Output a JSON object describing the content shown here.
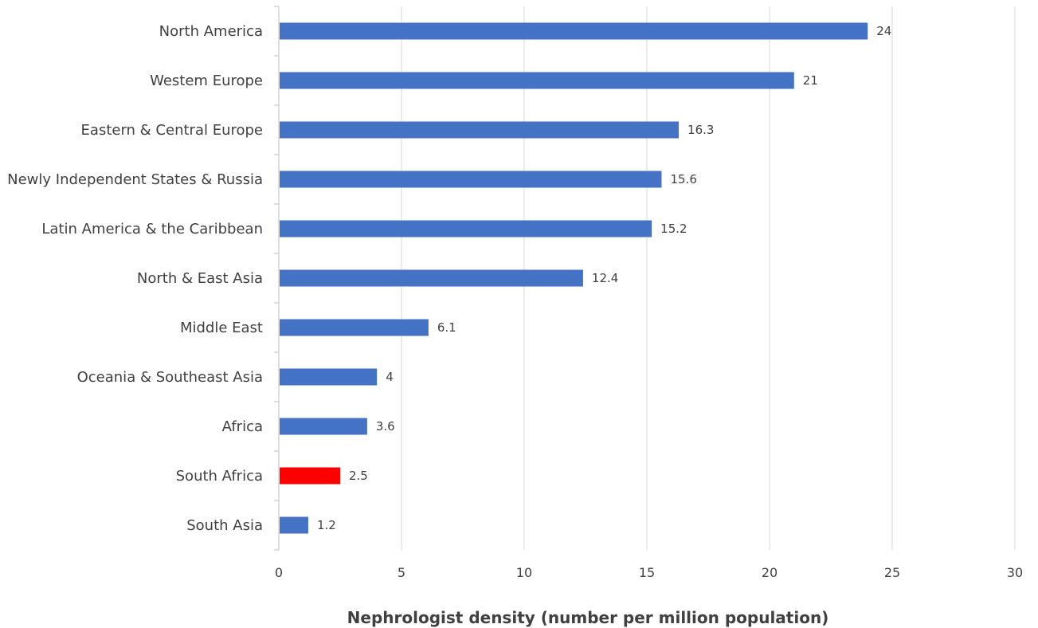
{
  "chart_data": {
    "type": "bar",
    "orientation": "horizontal",
    "categories": [
      "North America",
      "Westem Europe",
      "Eastern & Central Europe",
      "Newly Independent States & Russia",
      "Latin America & the Caribbean",
      "North & East Asia",
      "Middle East",
      "Oceania & Southeast Asia",
      "Africa",
      "South Africa",
      "South Asia"
    ],
    "values": [
      24,
      21,
      16.3,
      15.6,
      15.2,
      12.4,
      6.1,
      4,
      3.6,
      2.5,
      1.2
    ],
    "data_labels": [
      "24",
      "21",
      "16.3",
      "15.6",
      "15.2",
      "12.4",
      "6.1",
      "4",
      "3.6",
      "2.5",
      "1.2"
    ],
    "bar_colors": [
      "#4472c4",
      "#4472c4",
      "#4472c4",
      "#4472c4",
      "#4472c4",
      "#4472c4",
      "#4472c4",
      "#4472c4",
      "#4472c4",
      "#ff0000",
      "#4472c4"
    ],
    "title": "",
    "xlabel": "Nephrologist density (number per million population)",
    "ylabel": "",
    "xlim": [
      0,
      30
    ],
    "xticks": [
      0,
      5,
      10,
      15,
      20,
      25,
      30
    ],
    "xtick_labels": [
      "0",
      "5",
      "10",
      "15",
      "20",
      "25",
      "30"
    ],
    "grid": "vertical gridlines",
    "legend": "none"
  }
}
